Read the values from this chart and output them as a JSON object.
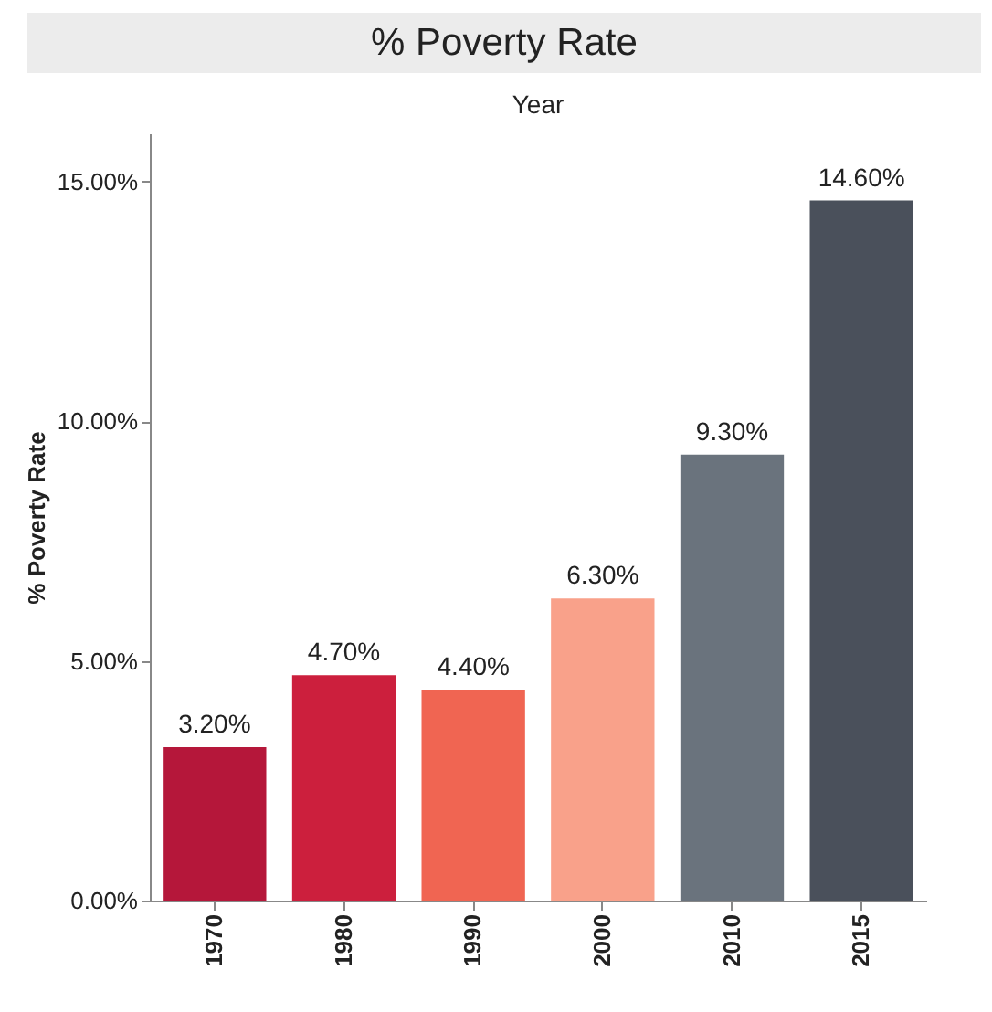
{
  "chart_data": {
    "type": "bar",
    "title": "% Poverty Rate",
    "xlabel": "Year",
    "ylabel": "% Poverty Rate",
    "categories": [
      "1970",
      "1980",
      "1990",
      "2000",
      "2010",
      "2015"
    ],
    "values": [
      3.2,
      4.7,
      4.4,
      6.3,
      9.3,
      14.6
    ],
    "colors": [
      "#b5173a",
      "#cc1f3d",
      "#f06552",
      "#f9a18a",
      "#6a737d",
      "#4a505b"
    ],
    "value_labels": [
      "3.20%",
      "4.70%",
      "4.40%",
      "6.30%",
      "9.30%",
      "14.60%"
    ],
    "ylim": [
      0,
      16
    ],
    "yticks": [
      {
        "value": 0,
        "label": "0.00%"
      },
      {
        "value": 5,
        "label": "5.00%"
      },
      {
        "value": 10,
        "label": "10.00%"
      },
      {
        "value": 15,
        "label": "15.00%"
      }
    ],
    "grid": false,
    "legend": false
  }
}
